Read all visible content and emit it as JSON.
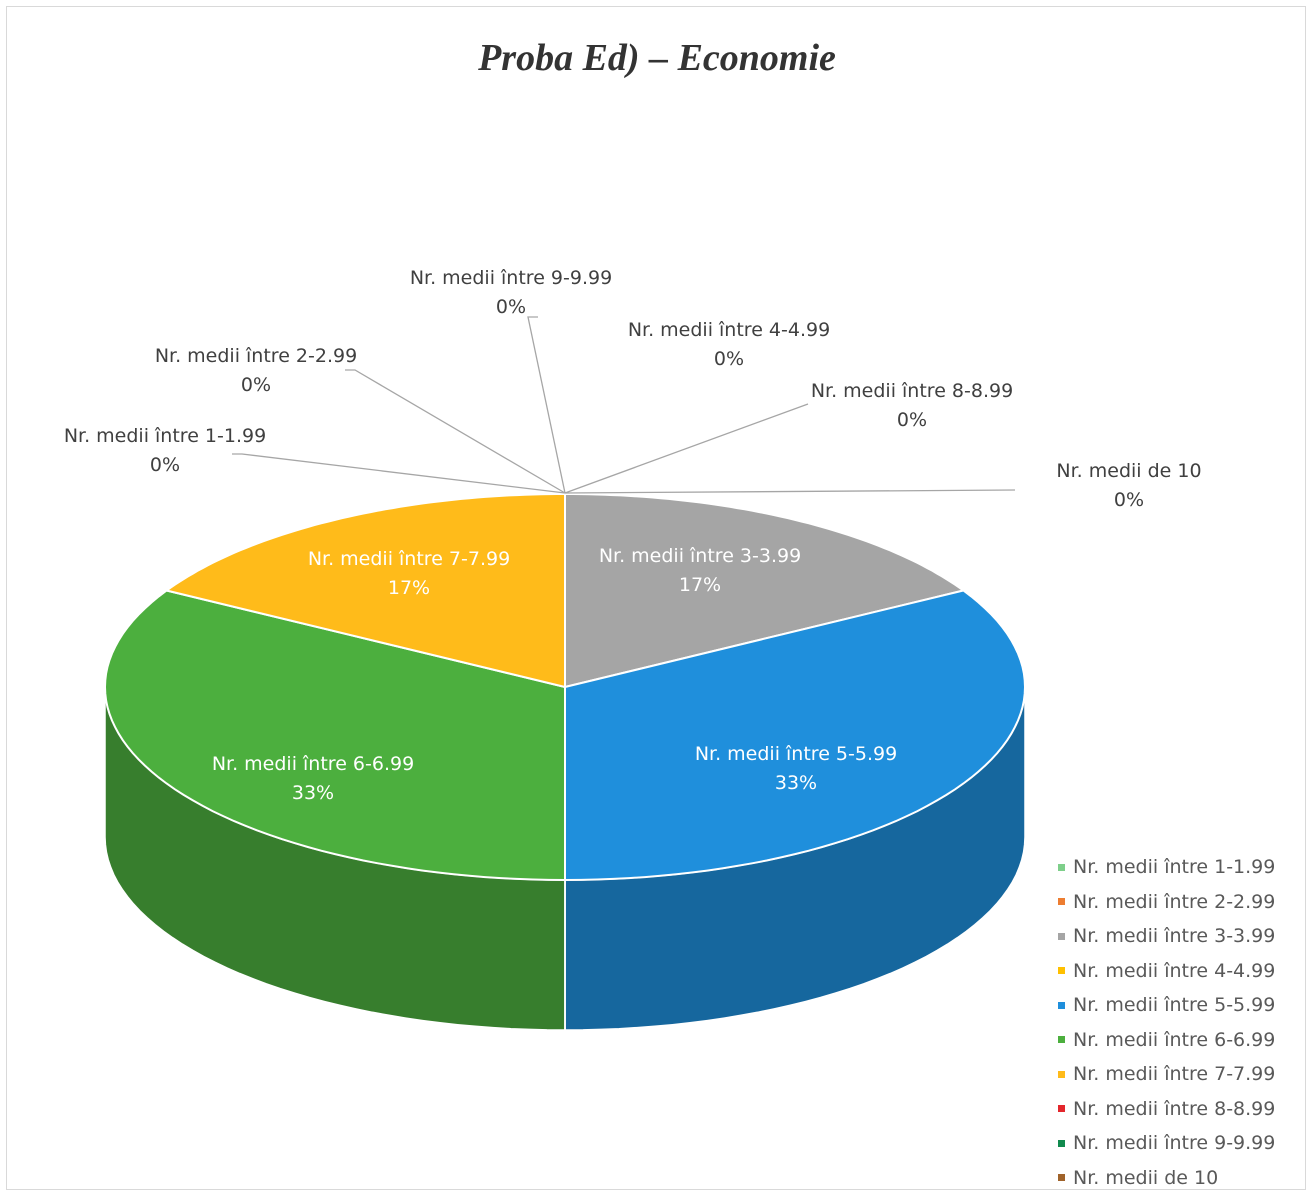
{
  "chart_data": {
    "type": "pie",
    "title": "Proba Ed) – Economie",
    "legend_position": "bottom-right",
    "categories": [
      "Nr. medii între 1-1.99",
      "Nr. medii între 2-2.99",
      "Nr. medii între 3-3.99",
      "Nr. medii între 4-4.99",
      "Nr. medii între 5-5.99",
      "Nr. medii între 6-6.99",
      "Nr. medii între 7-7.99",
      "Nr. medii între 8-8.99",
      "Nr. medii între 9-9.99",
      "Nr. medii de 10"
    ],
    "values": [
      0,
      0,
      1,
      0,
      2,
      2,
      1,
      0,
      0,
      0
    ],
    "percent_labels": [
      "0%",
      "0%",
      "17%",
      "0%",
      "33%",
      "33%",
      "17%",
      "0%",
      "0%",
      "0%"
    ],
    "colors": [
      "#7ecf8a",
      "#ed7d31",
      "#a5a5a5",
      "#ffc000",
      "#1f8fdc",
      "#4caf3e",
      "#ffbb1a",
      "#e3262c",
      "#118a4e",
      "#a0632a"
    ]
  }
}
